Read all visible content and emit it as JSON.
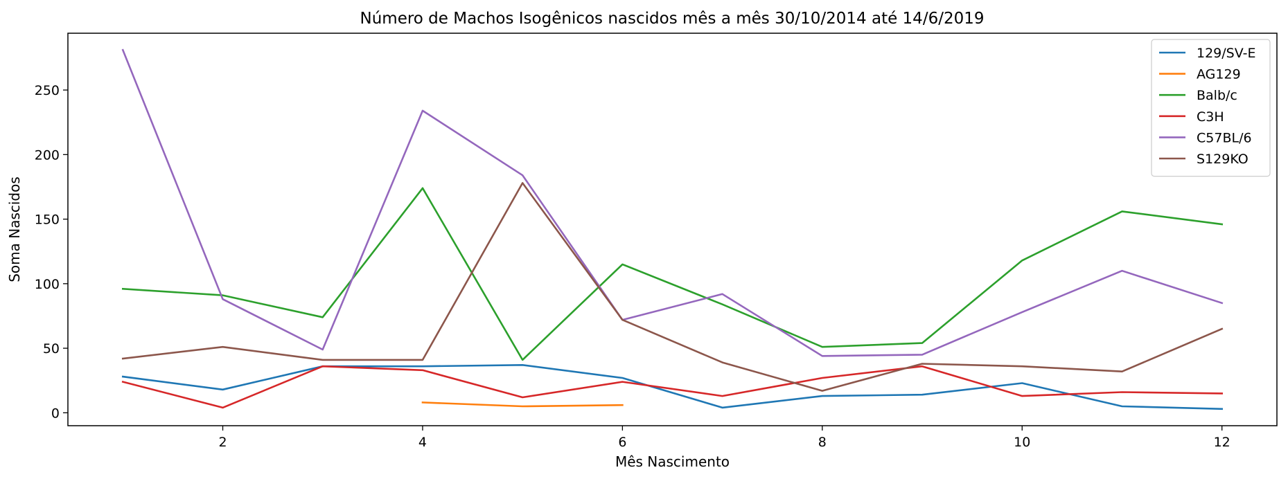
{
  "chart_data": {
    "type": "line",
    "title": "Número de Machos Isogênicos nascidos mês a mês 30/10/2014 até 14/6/2019",
    "xlabel": "Mês Nascimento",
    "ylabel": "Soma Nascidos",
    "xlim": [
      0.45,
      12.55
    ],
    "ylim": [
      -10,
      294
    ],
    "xticks": [
      2,
      4,
      6,
      8,
      10,
      12
    ],
    "yticks": [
      0,
      50,
      100,
      150,
      200,
      250
    ],
    "grid": false,
    "legend_position": "upper right",
    "series": [
      {
        "name": "129/SV-E",
        "color": "#1f77b4",
        "x": [
          1,
          2,
          3,
          4,
          5,
          6,
          7,
          8,
          9,
          10,
          11,
          12
        ],
        "y": [
          28,
          18,
          36,
          36,
          37,
          27,
          4,
          13,
          14,
          23,
          5,
          3
        ]
      },
      {
        "name": "AG129",
        "color": "#ff7f0e",
        "x": [
          4,
          5,
          6
        ],
        "y": [
          8,
          5,
          6
        ]
      },
      {
        "name": "Balb/c",
        "color": "#2ca02c",
        "x": [
          1,
          2,
          3,
          4,
          5,
          6,
          7,
          8,
          9,
          10,
          11,
          12
        ],
        "y": [
          96,
          91,
          74,
          174,
          41,
          115,
          84,
          51,
          54,
          118,
          156,
          146
        ]
      },
      {
        "name": "C3H",
        "color": "#d62728",
        "x": [
          1,
          2,
          3,
          4,
          5,
          6,
          7,
          8,
          9,
          10,
          11,
          12
        ],
        "y": [
          24,
          4,
          36,
          33,
          12,
          24,
          13,
          27,
          36,
          13,
          16,
          15
        ]
      },
      {
        "name": "C57BL/6",
        "color": "#9467bd",
        "x": [
          1,
          2,
          3,
          4,
          5,
          6,
          7,
          8,
          9,
          10,
          11,
          12
        ],
        "y": [
          281,
          88,
          49,
          234,
          184,
          72,
          92,
          44,
          45,
          78,
          110,
          85
        ]
      },
      {
        "name": "S129KO",
        "color": "#8c564b",
        "x": [
          1,
          2,
          3,
          4,
          5,
          6,
          7,
          8,
          9,
          10,
          11,
          12
        ],
        "y": [
          42,
          51,
          41,
          41,
          178,
          72,
          39,
          17,
          38,
          36,
          32,
          65
        ]
      }
    ]
  }
}
